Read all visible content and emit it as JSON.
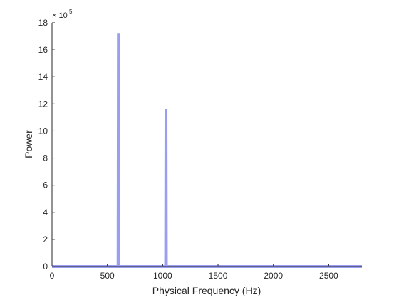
{
  "chart_data": {
    "type": "line",
    "title": "",
    "xlabel": "Physical Frequency (Hz)",
    "ylabel": "Power",
    "xlim": [
      0,
      2800
    ],
    "ylim": [
      0,
      18
    ],
    "x_ticks": [
      0,
      500,
      1000,
      1500,
      2000,
      2500
    ],
    "x_tick_labels": [
      "0",
      "500",
      "1000",
      "1500",
      "2000",
      "2500"
    ],
    "y_ticks": [
      0,
      2,
      4,
      6,
      8,
      10,
      12,
      14,
      16,
      18
    ],
    "y_tick_labels": [
      "0",
      "2",
      "4",
      "6",
      "8",
      "10",
      "12",
      "14",
      "16",
      "18"
    ],
    "y_multiplier_base": "× 10",
    "y_multiplier_exponent": "5",
    "y_scale_factor": 100000,
    "grid": false,
    "line_color": "#9a9ef0",
    "axis_color": "#262626",
    "series": [
      {
        "x": [
          0,
          597,
          600,
          603,
          1027,
          1030,
          1033,
          2800
        ],
        "y": [
          0,
          0,
          17.2,
          0,
          0,
          11.6,
          0,
          0
        ]
      }
    ]
  }
}
